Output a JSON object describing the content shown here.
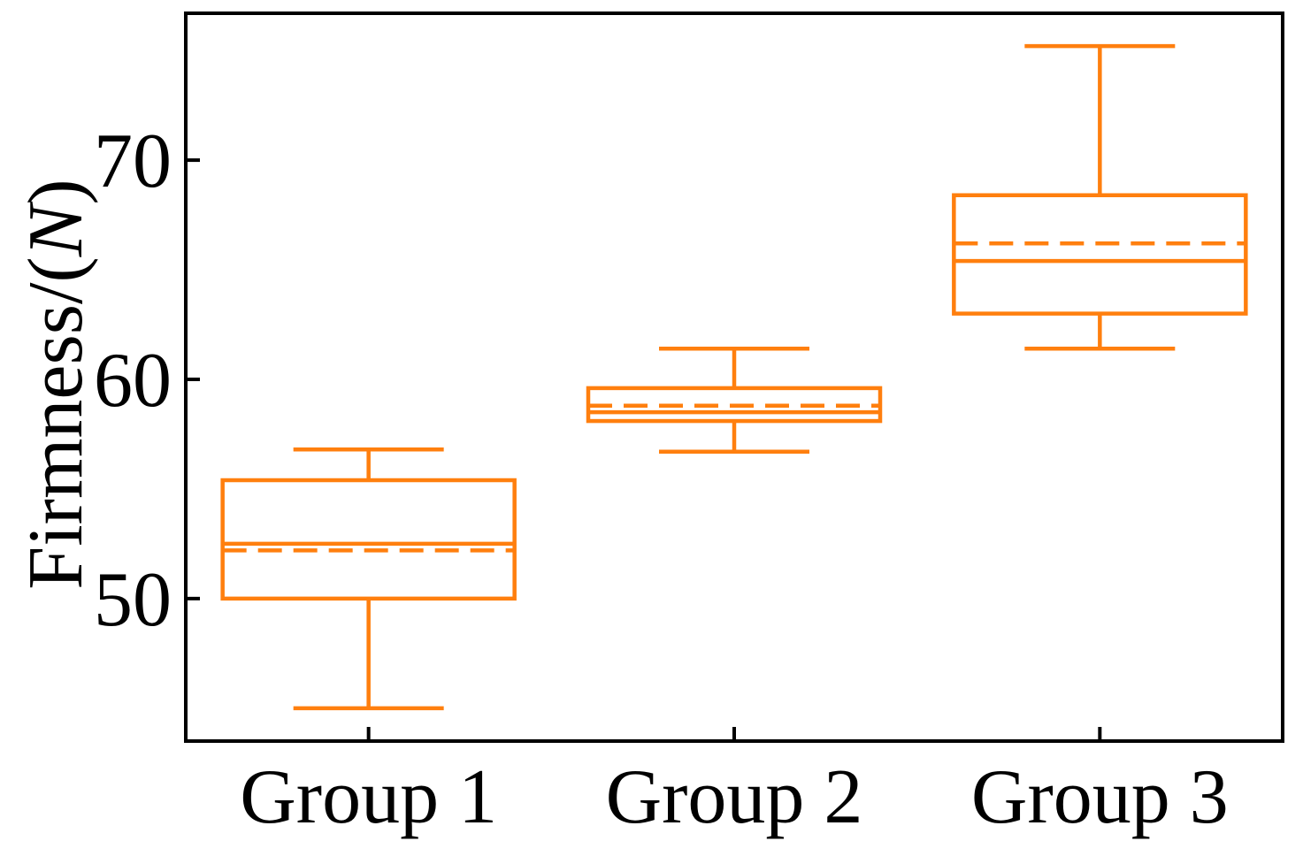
{
  "figure": {
    "background": "#ffffff",
    "axis_color": "#000000",
    "text_color": "#000000"
  },
  "chart_data": {
    "type": "boxplot",
    "title": "",
    "xlabel": "",
    "ylabel": "Firmness/(N)",
    "ylabel_parts": {
      "prefix": "Firmness/(",
      "italic": "N",
      "suffix": ")"
    },
    "categories": [
      "Group 1",
      "Group 2",
      "Group 3"
    ],
    "y_ticks": [
      50,
      60,
      70
    ],
    "ylim": [
      43.5,
      76.7
    ],
    "xlim": [
      0.5,
      3.5
    ],
    "grid": false,
    "legend_position": "none",
    "tick_direction": "in",
    "box_color": "#ff7f0e",
    "median_line": "solid",
    "mean_line": "dashed",
    "series": [
      {
        "name": "Group 1",
        "position": 1,
        "whisker_low": 45.0,
        "q1": 50.0,
        "median": 52.5,
        "mean": 52.2,
        "q3": 55.4,
        "whisker_high": 56.8
      },
      {
        "name": "Group 2",
        "position": 2,
        "whisker_low": 56.7,
        "q1": 58.1,
        "median": 58.5,
        "mean": 58.8,
        "q3": 59.6,
        "whisker_high": 61.4
      },
      {
        "name": "Group 3",
        "position": 3,
        "whisker_low": 61.4,
        "q1": 63.0,
        "median": 65.4,
        "mean": 66.2,
        "q3": 68.4,
        "whisker_high": 75.2
      }
    ]
  }
}
